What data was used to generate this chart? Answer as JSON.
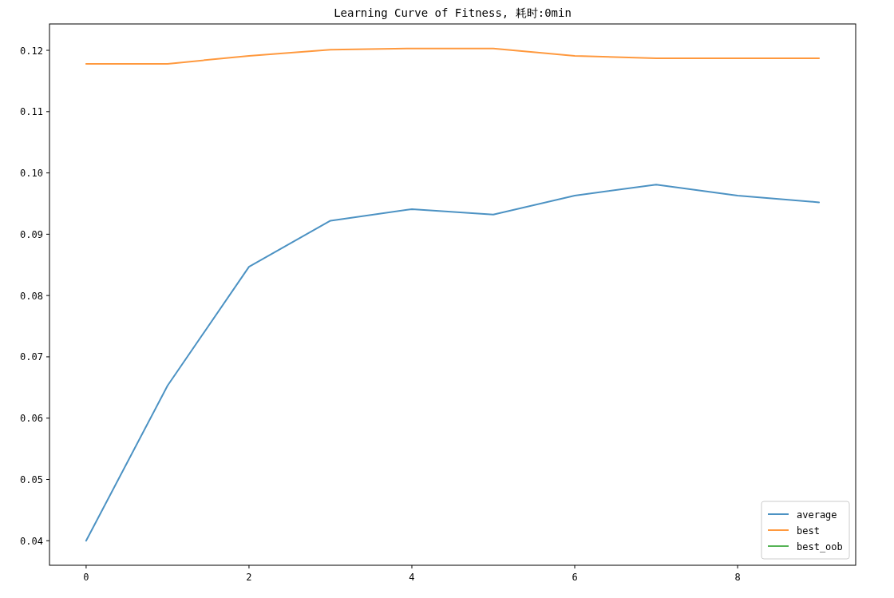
{
  "chart_data": {
    "type": "line",
    "title": "Learning Curve of Fitness, 耗时:0min",
    "x": [
      0,
      1,
      2,
      3,
      4,
      5,
      6,
      7,
      8,
      9
    ],
    "series": [
      {
        "name": "average",
        "color": "#1f77b4",
        "values": [
          0.04,
          0.0653,
          0.0847,
          0.0922,
          0.0941,
          0.0932,
          0.0963,
          0.0981,
          0.0963,
          0.0952
        ]
      },
      {
        "name": "best",
        "color": "#ff7f0e",
        "values": [
          0.1178,
          0.1178,
          0.1191,
          0.1201,
          0.1203,
          0.1203,
          0.1191,
          0.1187,
          0.1187,
          0.1187
        ]
      },
      {
        "name": "best_oob",
        "color": "#2ca02c",
        "values": [
          null,
          null,
          null,
          null,
          null,
          null,
          null,
          null,
          null,
          null
        ]
      }
    ],
    "xlim": [
      -0.45,
      9.45
    ],
    "xticks": [
      0,
      2,
      4,
      6,
      8
    ],
    "ylim": [
      0.036,
      0.1243
    ],
    "yticks": [
      0.04,
      0.05,
      0.06,
      0.07,
      0.08,
      0.09,
      {
        "value": 0.1,
        "label": "0.10"
      },
      0.11,
      0.12
    ],
    "legend": "bottom right",
    "grid": false
  }
}
